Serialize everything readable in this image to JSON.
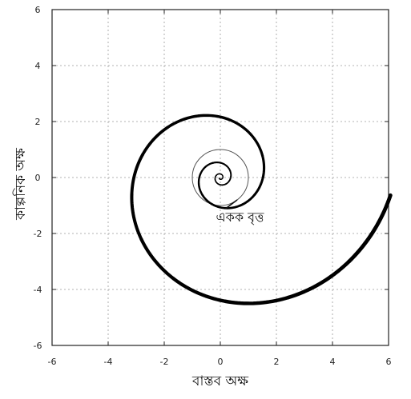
{
  "chart_data": {
    "type": "line",
    "title": "",
    "xlabel": "বাস্তব অক্ষ",
    "ylabel": "কাল্পনিক অক্ষ",
    "xlim": [
      -6,
      6
    ],
    "ylim": [
      -6,
      6
    ],
    "xticks": [
      "-6",
      "-4",
      "-2",
      "0",
      "2",
      "4",
      "6"
    ],
    "yticks": [
      "6",
      "4",
      "2",
      "0",
      "-2",
      "-4",
      "-6"
    ],
    "grid": true,
    "series": [
      {
        "type": "spiral",
        "r_start": 0.05,
        "r_end": 6.1,
        "theta_start_deg": 210,
        "turns": 3.4,
        "color": "#000000",
        "stroke_start": 1.4,
        "stroke_end": 4.8
      },
      {
        "type": "circle",
        "center": [
          0,
          0
        ],
        "radius": 1,
        "color": "#555555"
      }
    ],
    "annotations": [
      {
        "text": "একক বৃত্ত",
        "x": 0.7,
        "y": -1.4
      }
    ]
  }
}
